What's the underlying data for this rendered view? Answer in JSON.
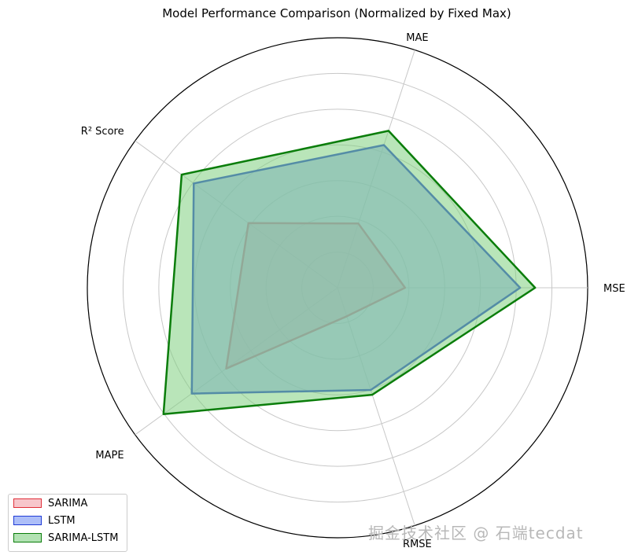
{
  "chart_data": {
    "type": "radar",
    "title": "Model Performance Comparison (Normalized by Fixed Max)",
    "axes": [
      "MSE",
      "MAE",
      "R² Score",
      "MAPE",
      "RMSE"
    ],
    "rlim": [
      0,
      1
    ],
    "rings": 7,
    "grid": true,
    "legend_position": "bottom-left",
    "series": [
      {
        "name": "SARIMA",
        "values": [
          0.27,
          0.27,
          0.44,
          0.55,
          0.12
        ],
        "color": "#e0303a",
        "fill": "#f2a0a8",
        "fill_opacity": 0.55
      },
      {
        "name": "LSTM",
        "values": [
          0.73,
          0.6,
          0.71,
          0.72,
          0.43
        ],
        "color": "#1f3bd6",
        "fill": "#8aa2f5",
        "fill_opacity": 0.65
      },
      {
        "name": "SARIMA-LSTM",
        "values": [
          0.79,
          0.66,
          0.77,
          0.86,
          0.45
        ],
        "color": "#0a7d0a",
        "fill": "#7fcf80",
        "fill_opacity": 0.55
      }
    ]
  },
  "watermark": "掘金技术社区 @ 石端tecdat"
}
